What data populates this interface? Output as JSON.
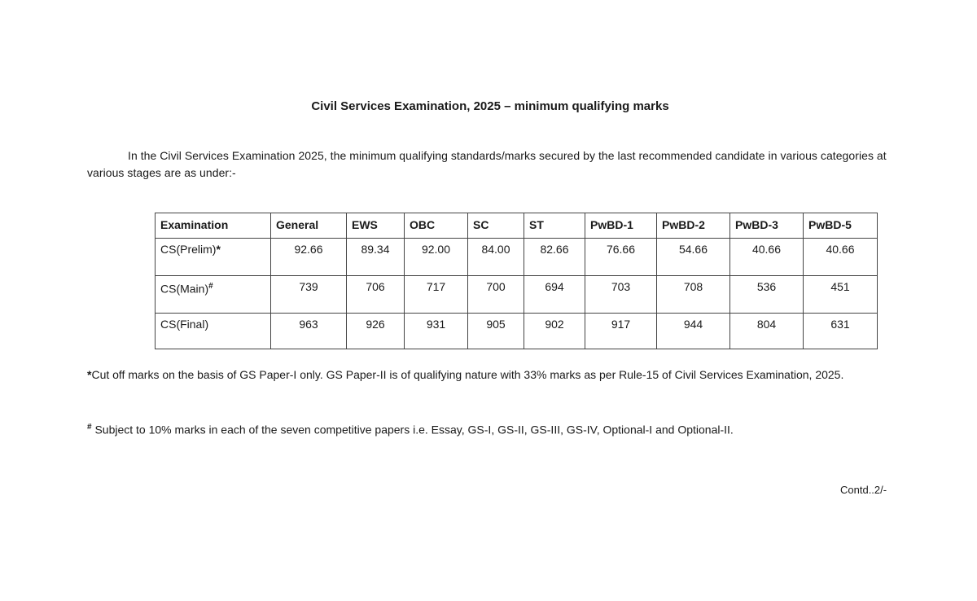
{
  "title": "Civil Services Examination, 2025 – minimum qualifying marks",
  "intro": "In the Civil Services Examination 2025, the minimum qualifying standards/marks secured by the last recommended candidate in various categories at various stages are as under:-",
  "table": {
    "headers": [
      "Examination",
      "General",
      "EWS",
      "OBC",
      "SC",
      "ST",
      "PwBD-1",
      "PwBD-2",
      "PwBD-3",
      "PwBD-5"
    ],
    "rows": [
      {
        "label": "CS(Prelim)",
        "mark": "*",
        "values": [
          "92.66",
          "89.34",
          "92.00",
          "84.00",
          "82.66",
          "76.66",
          "54.66",
          "40.66",
          "40.66"
        ]
      },
      {
        "label": "CS(Main)",
        "mark": "#",
        "values": [
          "739",
          "706",
          "717",
          "700",
          "694",
          "703",
          "708",
          "536",
          "451"
        ]
      },
      {
        "label": "CS(Final)",
        "mark": "",
        "values": [
          "963",
          "926",
          "931",
          "905",
          "902",
          "917",
          "944",
          "804",
          "631"
        ]
      }
    ]
  },
  "notes": {
    "prelim_mark": "*",
    "prelim": "Cut off marks on the basis of GS Paper-I only.  GS Paper-II is of qualifying nature with 33% marks as per Rule-15 of Civil Services Examination, 2025.",
    "main_mark": "#",
    "main": " Subject to 10% marks in each of the seven competitive papers i.e. Essay, GS-I, GS-II, GS-III, GS-IV, Optional-I and Optional-II."
  },
  "contd": "Contd..2/-"
}
